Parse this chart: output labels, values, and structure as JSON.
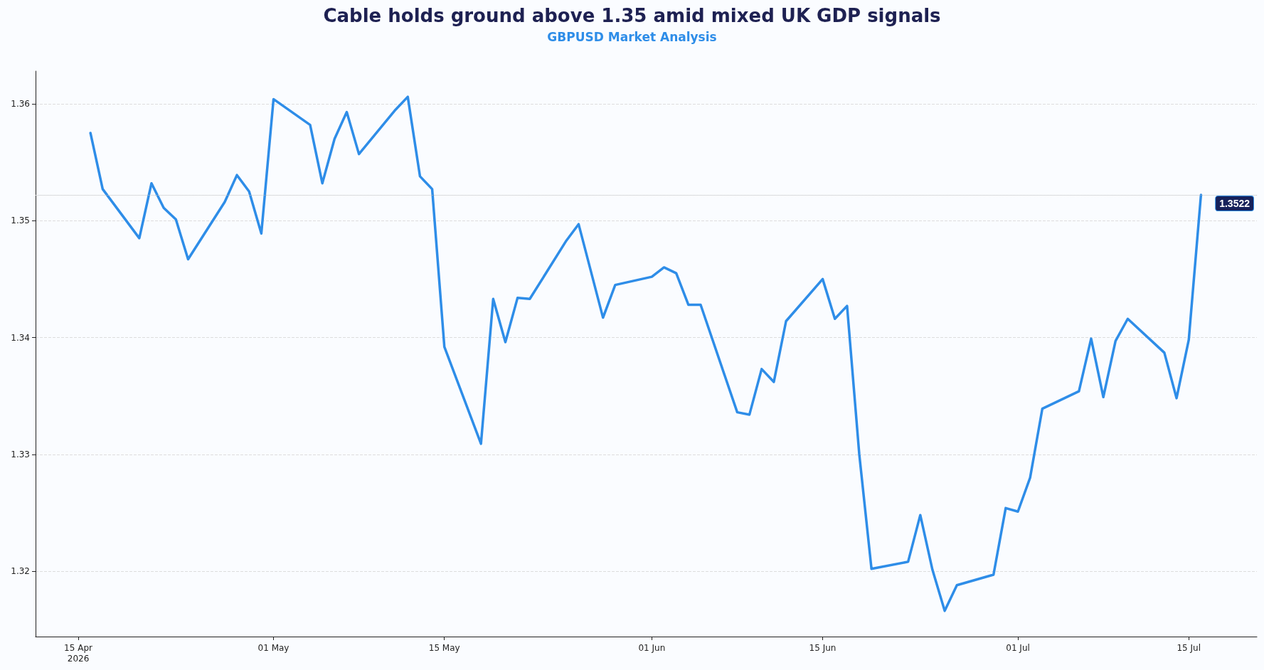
{
  "chart_data": {
    "type": "line",
    "title": "Cable holds ground above 1.35 amid mixed UK GDP signals",
    "subtitle": "GBPUSD Market Analysis",
    "x": [
      "2026-04-16",
      "2026-04-17",
      "2026-04-20",
      "2026-04-21",
      "2026-04-22",
      "2026-04-23",
      "2026-04-24",
      "2026-04-27",
      "2026-04-28",
      "2026-04-29",
      "2026-04-30",
      "2026-05-01",
      "2026-05-04",
      "2026-05-05",
      "2026-05-06",
      "2026-05-07",
      "2026-05-08",
      "2026-05-11",
      "2026-05-12",
      "2026-05-13",
      "2026-05-14",
      "2026-05-15",
      "2026-05-18",
      "2026-05-19",
      "2026-05-20",
      "2026-05-21",
      "2026-05-22",
      "2026-05-25",
      "2026-05-26",
      "2026-05-28",
      "2026-05-29",
      "2026-06-01",
      "2026-06-02",
      "2026-06-03",
      "2026-06-04",
      "2026-06-05",
      "2026-06-08",
      "2026-06-09",
      "2026-06-10",
      "2026-06-11",
      "2026-06-12",
      "2026-06-15",
      "2026-06-16",
      "2026-06-17",
      "2026-06-18",
      "2026-06-19",
      "2026-06-22",
      "2026-06-23",
      "2026-06-24",
      "2026-06-25",
      "2026-06-26",
      "2026-06-29",
      "2026-06-30",
      "2026-07-01",
      "2026-07-02",
      "2026-07-03",
      "2026-07-06",
      "2026-07-07",
      "2026-07-08",
      "2026-07-09",
      "2026-07-10",
      "2026-07-13",
      "2026-07-14",
      "2026-07-15",
      "2026-07-16"
    ],
    "series": [
      {
        "color": "#2e8de8",
        "values": [
          1.3575,
          1.3527,
          1.3485,
          1.3532,
          1.3511,
          1.3501,
          1.3467,
          1.3516,
          1.3539,
          1.3525,
          1.3489,
          1.3604,
          1.3582,
          1.3532,
          1.357,
          1.3593,
          1.3557,
          1.3595,
          1.3606,
          1.3538,
          1.3527,
          1.3392,
          1.3309,
          1.3433,
          1.3396,
          1.3434,
          1.3433,
          1.3483,
          1.3497,
          1.3417,
          1.3445,
          1.3452,
          1.346,
          1.3455,
          1.3428,
          1.3428,
          1.3336,
          1.3334,
          1.3373,
          1.3362,
          1.3414,
          1.345,
          1.3416,
          1.3427,
          1.33,
          1.3202,
          1.3208,
          1.3248,
          1.3201,
          1.3166,
          1.3188,
          1.3197,
          1.3254,
          1.3251,
          1.328,
          1.3339,
          1.3354,
          1.3399,
          1.3349,
          1.3397,
          1.3416,
          1.3387,
          1.3348,
          1.3398,
          1.3522
        ]
      }
    ],
    "xlim": [
      "2026-04-11T12:00",
      "2026-07-20T14:00"
    ],
    "xticks": [
      {
        "value": "2026-04-15",
        "label": "15 Apr\n2026"
      },
      {
        "value": "2026-05-01",
        "label": "01 May"
      },
      {
        "value": "2026-05-15",
        "label": "15 May"
      },
      {
        "value": "2026-06-01",
        "label": "01 Jun"
      },
      {
        "value": "2026-06-15",
        "label": "15 Jun"
      },
      {
        "value": "2026-07-01",
        "label": "01 Jul"
      },
      {
        "value": "2026-07-15",
        "label": "15 Jul"
      }
    ],
    "ylim": [
      1.3144,
      1.3628
    ],
    "yticks": [
      1.32,
      1.33,
      1.34,
      1.35,
      1.36
    ],
    "ref_lines": [
      {
        "axis": "y",
        "value": 1.3522,
        "label": "1.3522",
        "color": "#bbbbbb",
        "line_style": "dotted"
      }
    ],
    "grid": "y",
    "marker": "none",
    "line_style": "solid"
  }
}
